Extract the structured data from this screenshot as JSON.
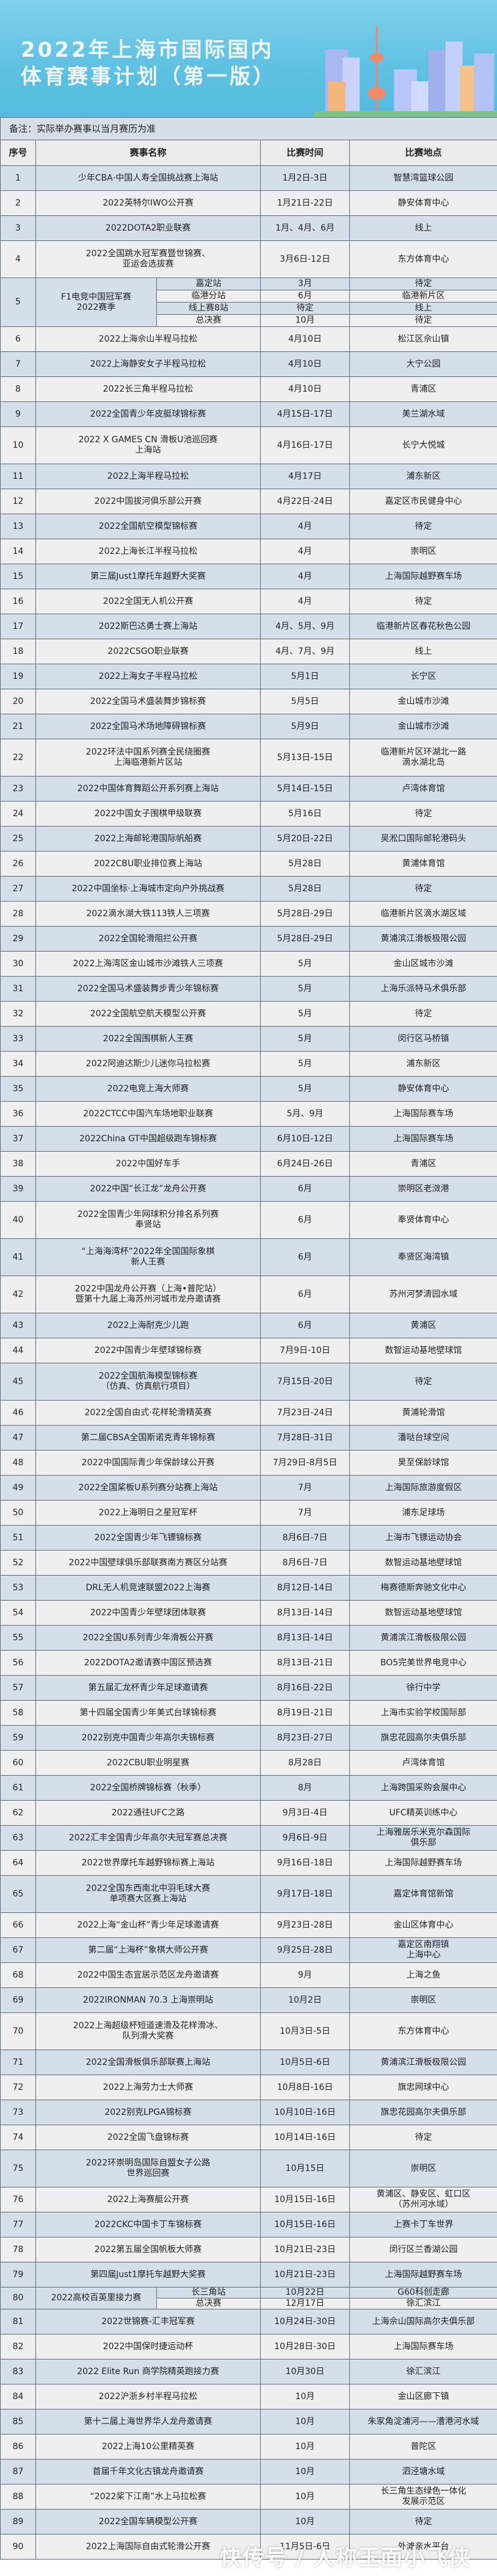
{
  "banner": {
    "title_line1": "2022年上海市国际国内",
    "title_line2": "体育赛事计划（第一版）"
  },
  "note": "备注：实际举办赛事以当月赛历为准",
  "headers": {
    "no": "序号",
    "name": "赛事名称",
    "time": "比赛时间",
    "place": "比赛地点"
  },
  "rows": [
    {
      "no": "1",
      "name": "少年CBA·中国人寿全国挑战赛上海站",
      "time": "1月2日-3日",
      "place": "智慧湾篮球公园"
    },
    {
      "no": "2",
      "name": "2022英特尔IWO公开赛",
      "time": "1月21日-22日",
      "place": "静安体育中心"
    },
    {
      "no": "3",
      "name": "2022DOTA2职业联赛",
      "time": "1月、4月、6月",
      "place": "线上"
    },
    {
      "no": "4",
      "name": "2022全国跳水冠军赛暨世锦赛、\n亚运会选拔赛",
      "time": "3月6日-12日",
      "place": "东方体育中心"
    },
    {
      "no": "5",
      "name": "F1电竞中国冠军赛\n2022赛季",
      "subs": [
        {
          "stage": "嘉定站",
          "time": "3月",
          "place": "待定"
        },
        {
          "stage": "临港分站",
          "time": "6月",
          "place": "临港新片区"
        },
        {
          "stage": "线上赛8站",
          "time": "待定",
          "place": "线上"
        },
        {
          "stage": "总决赛",
          "time": "10月",
          "place": "待定"
        }
      ]
    },
    {
      "no": "6",
      "name": "2022上海佘山半程马拉松",
      "time": "4月10日",
      "place": "松江区佘山镇"
    },
    {
      "no": "7",
      "name": "2022上海静安女子半程马拉松",
      "time": "4月10日",
      "place": "大宁公园"
    },
    {
      "no": "8",
      "name": "2022长三角半程马拉松",
      "time": "4月10日",
      "place": "青浦区"
    },
    {
      "no": "9",
      "name": "2022全国青少年皮艇球锦标赛",
      "time": "4月15日-17日",
      "place": "美兰湖水域"
    },
    {
      "no": "10",
      "name": "2022 X GAMES CN 滑板U池巡回赛\n上海站",
      "time": "4月16日-17日",
      "place": "长宁大悦城"
    },
    {
      "no": "11",
      "name": "2022上海半程马拉松",
      "time": "4月17日",
      "place": "浦东新区"
    },
    {
      "no": "12",
      "name": "2022中国拔河俱乐部公开赛",
      "time": "4月22日-24日",
      "place": "嘉定区市民健身中心"
    },
    {
      "no": "13",
      "name": "2022全国航空模型锦标赛",
      "time": "4月",
      "place": "待定"
    },
    {
      "no": "14",
      "name": "2022上海长江半程马拉松",
      "time": "4月",
      "place": "崇明区"
    },
    {
      "no": "15",
      "name": "第三届Just1摩托车越野大奖赛",
      "time": "4月",
      "place": "上海国际越野赛车场"
    },
    {
      "no": "16",
      "name": "2022全国无人机公开赛",
      "time": "4月",
      "place": "待定"
    },
    {
      "no": "17",
      "name": "2022斯巴达勇士赛上海站",
      "time": "4月、5月、9月",
      "place": "临港新片区春花秋色公园"
    },
    {
      "no": "18",
      "name": "2022CSGO职业联赛",
      "time": "4月、7月、9月",
      "place": "线上"
    },
    {
      "no": "19",
      "name": "2022上海女子半程马拉松",
      "time": "5月1日",
      "place": "长宁区"
    },
    {
      "no": "20",
      "name": "2022全国马术盛装舞步锦标赛",
      "time": "5月5日",
      "place": "金山城市沙滩"
    },
    {
      "no": "21",
      "name": "2022全国马术场地障碍锦标赛",
      "time": "5月9日",
      "place": "金山城市沙滩"
    },
    {
      "no": "22",
      "name": "2022环法中国系列赛全民绕圈赛\n上海临港新片区站",
      "time": "5月13日-15日",
      "place": "临港新片区环湖北一路\n滴水湖北岛"
    },
    {
      "no": "23",
      "name": "2022中国体育舞蹈公开系列赛上海站",
      "time": "5月14日-15日",
      "place": "卢湾体育馆"
    },
    {
      "no": "24",
      "name": "2022中国女子围棋甲级联赛",
      "time": "5月16日",
      "place": "待定"
    },
    {
      "no": "25",
      "name": "2022上海邮轮港国际帆船赛",
      "time": "5月20日-22日",
      "place": "吴淞口国际邮轮港码头"
    },
    {
      "no": "26",
      "name": "2022CBU职业排位赛上海站",
      "time": "5月28日",
      "place": "黄浦体育馆"
    },
    {
      "no": "27",
      "name": "2022中国坐标·上海城市定向户外挑战赛",
      "time": "5月28日",
      "place": "待定"
    },
    {
      "no": "28",
      "name": "2022滴水湖大铁113铁人三项赛",
      "time": "5月28日-29日",
      "place": "临港新片区滴水湖区域"
    },
    {
      "no": "29",
      "name": "2022全国轮滑阻拦公开赛",
      "time": "5月28日-29日",
      "place": "黄浦滨江滑板极限公园"
    },
    {
      "no": "30",
      "name": "2022上海湾区金山城市沙滩铁人三项赛",
      "time": "5月",
      "place": "金山区城市沙滩"
    },
    {
      "no": "31",
      "name": "2022全国马术盛装舞步青少年锦标赛",
      "time": "5月",
      "place": "上海乐派特马术俱乐部"
    },
    {
      "no": "32",
      "name": "2022全国航空航天模型公开赛",
      "time": "5月",
      "place": "待定"
    },
    {
      "no": "33",
      "name": "2022全国围棋新人王赛",
      "time": "5月",
      "place": "闵行区马桥镇"
    },
    {
      "no": "34",
      "name": "2022阿迪达斯少儿迷你马拉松赛",
      "time": "5月",
      "place": "浦东新区"
    },
    {
      "no": "35",
      "name": "2022电竞上海大师赛",
      "time": "5月",
      "place": "静安体育中心"
    },
    {
      "no": "36",
      "name": "2022CTCC中国汽车场地职业联赛",
      "time": "5月、9月",
      "place": "上海国际赛车场"
    },
    {
      "no": "37",
      "name": "2022China GT中国超级跑车锦标赛",
      "time": "6月10日-12日",
      "place": "上海国际赛车场"
    },
    {
      "no": "38",
      "name": "2022中国好车手",
      "time": "6月24日-26日",
      "place": "青浦区"
    },
    {
      "no": "39",
      "name": "2022中国“长江龙”龙舟公开赛",
      "time": "6月",
      "place": "崇明区老滧港"
    },
    {
      "no": "40",
      "name": "2022全国青少年网球积分排名系列赛\n奉贤站",
      "time": "6月",
      "place": "奉贤体育中心"
    },
    {
      "no": "41",
      "name": "“上海海湾杯”2022年全国国际象棋\n新人王赛",
      "time": "6月",
      "place": "奉贤区海湾镇"
    },
    {
      "no": "42",
      "name": "2022中国龙舟公开赛（上海•普陀站）\n暨第十九届上海苏州河城市龙舟邀请赛",
      "time": "6月",
      "place": "苏州河梦清园水域"
    },
    {
      "no": "43",
      "name": "2022上海耐克少儿跑",
      "time": "6月",
      "place": "黄浦区"
    },
    {
      "no": "44",
      "name": "2022中国青少年壁球锦标赛",
      "time": "7月9日-10日",
      "place": "数智运动基地壁球馆"
    },
    {
      "no": "45",
      "name": "2022全国航海模型锦标赛\n（仿真、仿真航行项目）",
      "time": "7月15日-20日",
      "place": "待定"
    },
    {
      "no": "46",
      "name": "2022全国自由式·花样轮滑精英赛",
      "time": "7月23日-24日",
      "place": "黄浦轮滑馆"
    },
    {
      "no": "47",
      "name": "第二届CBSA全国斯诺克青年锦标赛",
      "time": "7月28日-31日",
      "place": "潘哒台球空间"
    },
    {
      "no": "48",
      "name": "2022中国国际青少年保龄球公开赛",
      "time": "7月29日-8月5日",
      "place": "昊至保龄球馆"
    },
    {
      "no": "49",
      "name": "2022全国桨板U系列赛分站赛上海站",
      "time": "7月",
      "place": "上海国际旅游度假区"
    },
    {
      "no": "50",
      "name": "2022上海明日之星冠军杯",
      "time": "7月",
      "place": "浦东足球场"
    },
    {
      "no": "51",
      "name": "2022全国青少年飞镖锦标赛",
      "time": "8月6日-7日",
      "place": "上海市飞镖运动协会"
    },
    {
      "no": "52",
      "name": "2022中国壁球俱乐部联赛南方赛区分站赛",
      "time": "8月6日-7日",
      "place": "数智运动基地壁球馆"
    },
    {
      "no": "53",
      "name": "DRL无人机竞速联盟2022上海赛",
      "time": "8月12日-14日",
      "place": "梅赛德斯奔驰文化中心"
    },
    {
      "no": "54",
      "name": "2022中国青少年壁球团体联赛",
      "time": "8月13日-14日",
      "place": "数智运动基地壁球馆"
    },
    {
      "no": "55",
      "name": "2022全国U系列青少年滑板公开赛",
      "time": "8月13日-14日",
      "place": "黄浦滨江滑板极限公园"
    },
    {
      "no": "56",
      "name": "2022DOTA2邀请赛中国区预选赛",
      "time": "8月13日-21日",
      "place": "BO5完美世界电竞中心"
    },
    {
      "no": "57",
      "name": "第五届汇龙杯青少年足球邀请赛",
      "time": "8月16日-22日",
      "place": "徐行中学"
    },
    {
      "no": "58",
      "name": "第十四届全国青少年美式台球锦标赛",
      "time": "8月19日-21日",
      "place": "上海市实验学校国际部"
    },
    {
      "no": "59",
      "name": "2022别克中国青少年高尔夫锦标赛",
      "time": "8月23日-27日",
      "place": "旗忠花园高尔夫俱乐部"
    },
    {
      "no": "60",
      "name": "2022CBU职业明星赛",
      "time": "8月28日",
      "place": "卢湾体育馆"
    },
    {
      "no": "61",
      "name": "2022全国桥牌锦标赛（秋季）",
      "time": "8月",
      "place": "上海跨国采购会展中心"
    },
    {
      "no": "62",
      "name": "2022通往UFC之路",
      "time": "9月3日-4日",
      "place": "UFC精英训练中心"
    },
    {
      "no": "63",
      "name": "2022汇丰全国青少年高尔夫冠军赛总决赛",
      "time": "9月6日-9日",
      "place": "上海雅居乐米克尔森国际\n俱乐部"
    },
    {
      "no": "64",
      "name": "2022世界摩托车越野锦标赛上海站",
      "time": "9月16日-18日",
      "place": "上海国际越野赛车场"
    },
    {
      "no": "65",
      "name": "2022全国东西南北中羽毛球大赛\n单项赛大区赛上海站",
      "time": "9月17日-18日",
      "place": "嘉定体育馆新馆"
    },
    {
      "no": "66",
      "name": "2022上海“金山杯”青少年足球邀请赛",
      "time": "9月23日-28日",
      "place": "金山区体育中心"
    },
    {
      "no": "67",
      "name": "第二届“上海杯”象棋大师公开赛",
      "time": "9月25日-28日",
      "place": "嘉定区南翔镇\n上海中心"
    },
    {
      "no": "68",
      "name": "2022中国生态宜居示范区龙舟邀请赛",
      "time": "9月",
      "place": "上海之鱼"
    },
    {
      "no": "69",
      "name": "2022IRONMAN 70.3 上海崇明站",
      "time": "10月2日",
      "place": "崇明区"
    },
    {
      "no": "70",
      "name": "2022上海超级杯短道速滑及花样滑冰、\n队列滑大奖赛",
      "time": "10月3日-5日",
      "place": "东方体育中心"
    },
    {
      "no": "71",
      "name": "2022全国滑板俱乐部联赛上海站",
      "time": "10月5日-6日",
      "place": "黄浦滨江滑板极限公园"
    },
    {
      "no": "72",
      "name": "2022上海劳力士大师赛",
      "time": "10月8日-16日",
      "place": "旗忠网球中心"
    },
    {
      "no": "73",
      "name": "2022别克LPGA锦标赛",
      "time": "10月10日-16日",
      "place": "旗忠花园高尔夫俱乐部"
    },
    {
      "no": "74",
      "name": "2022全国飞盘锦标赛",
      "time": "10月14日-16日",
      "place": "待定"
    },
    {
      "no": "75",
      "name": "2022环崇明岛国际自盟女子公路\n世界巡回赛",
      "time": "10月15日",
      "place": "崇明区"
    },
    {
      "no": "76",
      "name": "2022上海赛艇公开赛",
      "time": "10月15日-16日",
      "place": "黄浦区、静安区、虹口区\n（苏州河水域）"
    },
    {
      "no": "77",
      "name": "2022CKC中国卡丁车锦标赛",
      "time": "10月15日-16日",
      "place": "上赛卡丁车世界"
    },
    {
      "no": "78",
      "name": "2022第五届全国帆板大师赛",
      "time": "10月21日-23日",
      "place": "闵行区兰香湖公园"
    },
    {
      "no": "79",
      "name": "第四届Just1摩托车越野大奖赛",
      "time": "10月21日-23日",
      "place": "上海国际越野赛车场"
    },
    {
      "no": "80",
      "name": "2022高校百英里接力赛",
      "subs": [
        {
          "stage": "长三角站",
          "time": "10月22日",
          "place": "G60科创走廊"
        },
        {
          "stage": "总决赛",
          "time": "12月17日",
          "place": "徐汇滨江"
        }
      ]
    },
    {
      "no": "81",
      "name": "2022世锦赛-汇丰冠军赛",
      "time": "10月24日-30日",
      "place": "上海佘山国际高尔夫俱乐部"
    },
    {
      "no": "82",
      "name": "2022中国保时捷运动杯",
      "time": "10月28日-30日",
      "place": "上海国际赛车场"
    },
    {
      "no": "83",
      "name": "2022 Elite Run 商学院精英跑接力赛",
      "time": "10月30日",
      "place": "徐汇滨江"
    },
    {
      "no": "84",
      "name": "2022沪浙乡村半程马拉松",
      "time": "10月",
      "place": "金山区廊下镇"
    },
    {
      "no": "85",
      "name": "第十二届上海世界华人龙舟邀请赛",
      "time": "10月",
      "place": "朱家角淀浦河——漕港河水域"
    },
    {
      "no": "86",
      "name": "2022上海10公里精英赛",
      "time": "10月",
      "place": "普陀区"
    },
    {
      "no": "87",
      "name": "首届千年文化古镇龙舟邀请赛",
      "time": "10月",
      "place": "泗泾塘水域"
    },
    {
      "no": "88",
      "name": "“2022桨下江南”水上马拉松赛",
      "time": "10月",
      "place": "长三角生态绿色一体化\n发展示范区"
    },
    {
      "no": "89",
      "name": "2022全国车辆模型公开赛",
      "time": "10月",
      "place": "待定"
    },
    {
      "no": "90",
      "name": "2022上海国际自由式轮滑公开赛",
      "time": "11月5日-6日",
      "place": "外滩亲水平台"
    }
  ],
  "watermark": "快传号 / 人称玉面小飞侠",
  "colors": {
    "banner": "#5ec0e2",
    "row_blue": "#d4dfea",
    "row_light": "#efefef",
    "border": "#5d6b78"
  }
}
